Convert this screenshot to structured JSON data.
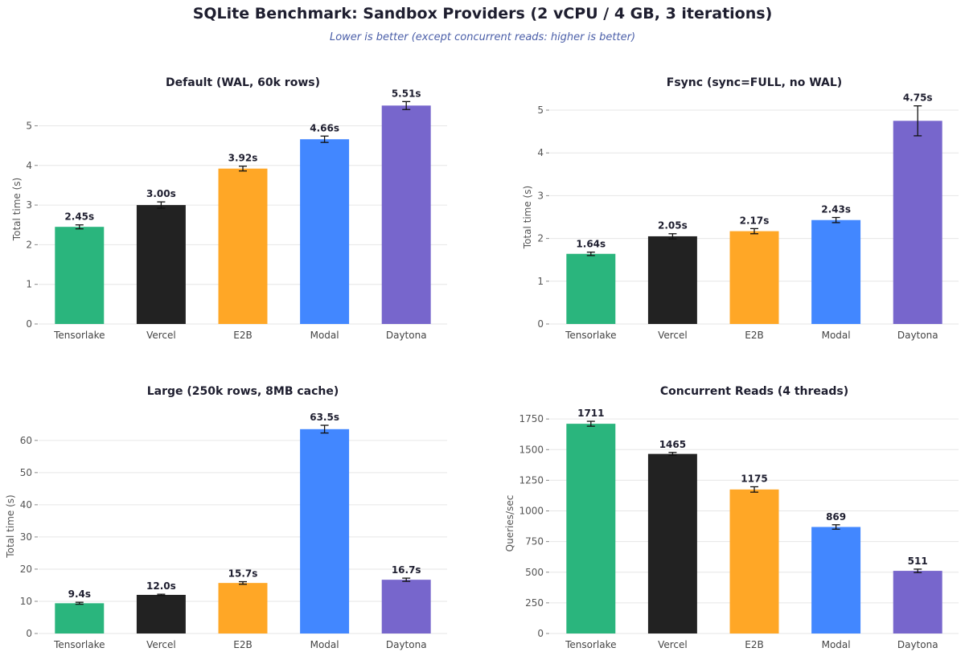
{
  "header": {
    "title": "SQLite Benchmark: Sandbox Providers (2 vCPU / 4 GB, 3 iterations)",
    "subtitle": "Lower is better (except concurrent reads: higher is better)"
  },
  "colors": {
    "Tensorlake": "#2ab57d",
    "Vercel": "#222222",
    "E2B": "#ffa726",
    "Modal": "#4287ff",
    "Daytona": "#7766cc"
  },
  "chart_data": [
    {
      "type": "bar",
      "title": "Default (WAL, 60k rows)",
      "ylabel": "Total time (s)",
      "xlabel": "",
      "categories": [
        "Tensorlake",
        "Vercel",
        "E2B",
        "Modal",
        "Daytona"
      ],
      "values": [
        2.45,
        3.0,
        3.92,
        4.66,
        5.51
      ],
      "errors": [
        0.05,
        0.08,
        0.06,
        0.08,
        0.1
      ],
      "labels": [
        "2.45s",
        "3.00s",
        "3.92s",
        "4.66s",
        "5.51s"
      ],
      "ylim": [
        0,
        5.8
      ],
      "yticks": [
        0,
        1,
        2,
        3,
        4,
        5
      ],
      "ytick_labels": [
        "0",
        "1",
        "2",
        "3",
        "4",
        "5"
      ],
      "grid": true
    },
    {
      "type": "bar",
      "title": "Fsync (sync=FULL, no WAL)",
      "ylabel": "Total time (s)",
      "xlabel": "",
      "categories": [
        "Tensorlake",
        "Vercel",
        "E2B",
        "Modal",
        "Daytona"
      ],
      "values": [
        1.64,
        2.05,
        2.17,
        2.43,
        4.75
      ],
      "errors": [
        0.04,
        0.06,
        0.06,
        0.06,
        0.35
      ],
      "labels": [
        "1.64s",
        "2.05s",
        "2.17s",
        "2.43s",
        "4.75s"
      ],
      "ylim": [
        0,
        5.0
      ],
      "yticks": [
        0,
        1,
        2,
        3,
        4,
        5
      ],
      "ytick_labels": [
        "0",
        "1",
        "2",
        "3",
        "4",
        "5"
      ],
      "grid": true
    },
    {
      "type": "bar",
      "title": "Large (250k rows, 8MB cache)",
      "ylabel": "Total time (s)",
      "xlabel": "",
      "categories": [
        "Tensorlake",
        "Vercel",
        "E2B",
        "Modal",
        "Daytona"
      ],
      "values": [
        9.4,
        12.0,
        15.7,
        63.5,
        16.7
      ],
      "errors": [
        0.3,
        0.2,
        0.4,
        1.2,
        0.5
      ],
      "labels": [
        "9.4s",
        "12.0s",
        "15.7s",
        "63.5s",
        "16.7s"
      ],
      "ylim": [
        0,
        66.7
      ],
      "yticks": [
        0,
        10,
        20,
        30,
        40,
        50,
        60
      ],
      "ytick_labels": [
        "0",
        "10",
        "20",
        "30",
        "40",
        "50",
        "60"
      ],
      "grid": true
    },
    {
      "type": "bar",
      "title": "Concurrent Reads (4 threads)",
      "ylabel": "Queries/sec",
      "xlabel": "",
      "categories": [
        "Tensorlake",
        "Vercel",
        "E2B",
        "Modal",
        "Daytona"
      ],
      "values": [
        1711,
        1465,
        1175,
        869,
        511
      ],
      "errors": [
        20,
        12,
        22,
        18,
        14
      ],
      "labels": [
        "1711",
        "1465",
        "1175",
        "869",
        "511"
      ],
      "ylim": [
        0,
        1797
      ],
      "yticks": [
        0,
        250,
        500,
        750,
        1000,
        1250,
        1500,
        1750
      ],
      "ytick_labels": [
        "0",
        "250",
        "500",
        "750",
        "1000",
        "1250",
        "1500",
        "1750"
      ],
      "grid": true
    }
  ]
}
